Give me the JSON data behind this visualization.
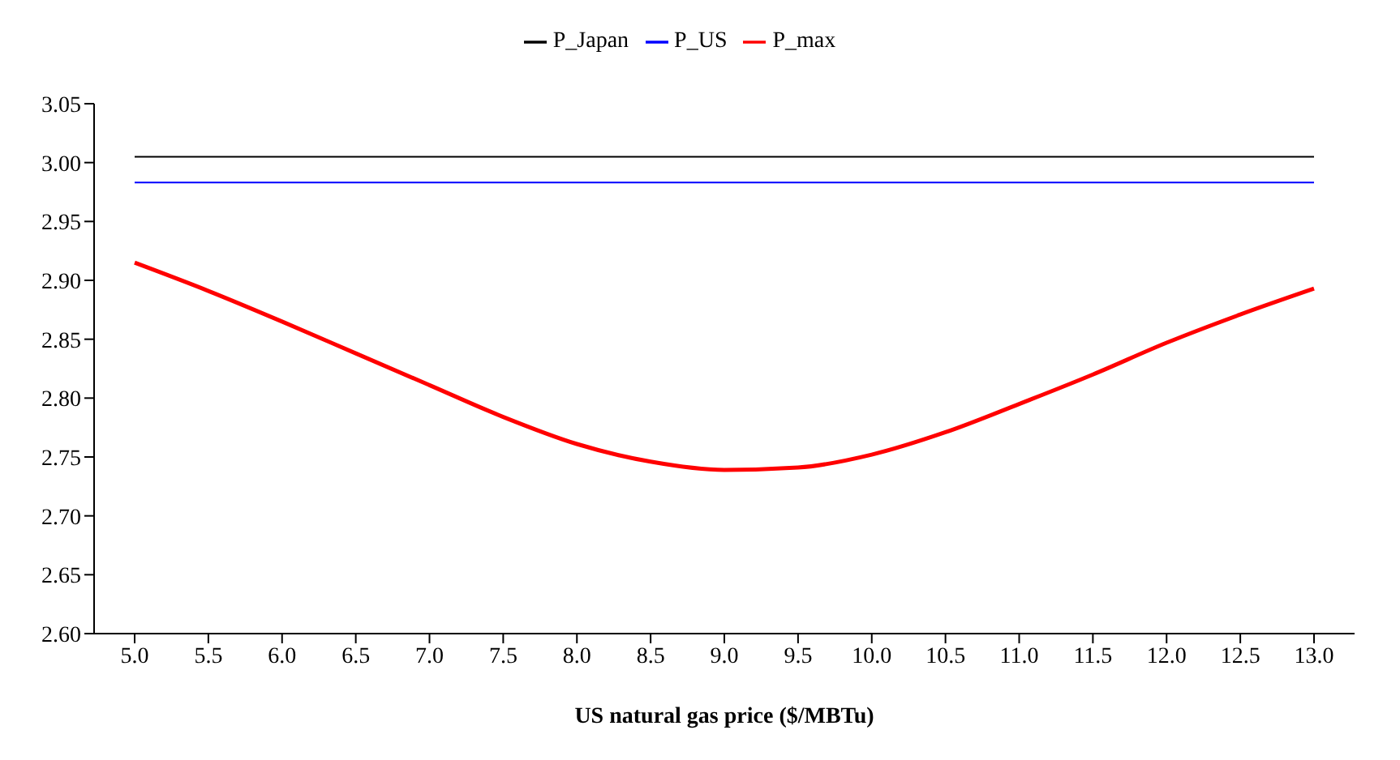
{
  "chart_data": {
    "type": "line",
    "xlabel": "US natural gas price ($/MBTu)",
    "categories": [
      "5.0",
      "5.5",
      "6.0",
      "6.5",
      "7.0",
      "7.5",
      "8.0",
      "8.5",
      "9.0",
      "9.5",
      "10.0",
      "10.5",
      "11.0",
      "11.5",
      "12.0",
      "12.5",
      "13.0"
    ],
    "series": [
      {
        "name": "P_Japan",
        "color": "#000000",
        "values": [
          3.005,
          3.005,
          3.005,
          3.005,
          3.005,
          3.005,
          3.005,
          3.005,
          3.005,
          3.005,
          3.005,
          3.005,
          3.005,
          3.005,
          3.005,
          3.005,
          3.005
        ]
      },
      {
        "name": "P_US",
        "color": "#0000ff",
        "values": [
          2.983,
          2.983,
          2.983,
          2.983,
          2.983,
          2.983,
          2.983,
          2.983,
          2.983,
          2.983,
          2.983,
          2.983,
          2.983,
          2.983,
          2.983,
          2.983,
          2.983
        ]
      },
      {
        "name": "P_max",
        "color": "#ff0000",
        "values": [
          2.915,
          2.891,
          2.865,
          2.838,
          2.811,
          2.784,
          2.761,
          2.746,
          2.739,
          2.741,
          2.752,
          2.771,
          2.795,
          2.82,
          2.847,
          2.871,
          2.893
        ]
      }
    ],
    "ylim": [
      2.6,
      3.05
    ],
    "yticks": [
      {
        "value": 2.6,
        "label": "2.60"
      },
      2.65,
      {
        "value": 2.7,
        "label": "2.70"
      },
      2.75,
      {
        "value": 2.8,
        "label": "2.80"
      },
      2.85,
      {
        "value": 2.9,
        "label": "2.90"
      },
      2.95,
      {
        "value": 3.0,
        "label": "3.00"
      },
      3.05
    ],
    "grid": false,
    "legend": "top",
    "marker": "none",
    "line_style": "solid"
  }
}
